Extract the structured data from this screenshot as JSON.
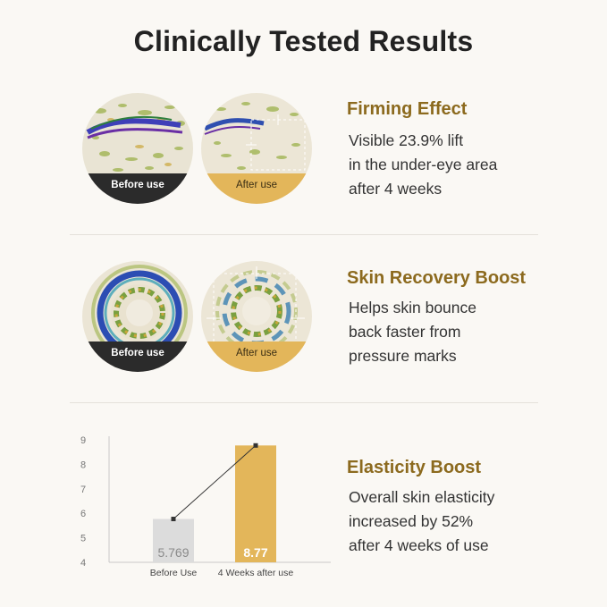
{
  "page": {
    "title": "Clinically Tested Results"
  },
  "sections": [
    {
      "heading": "Firming Effect",
      "lines": [
        "Visible 23.9% lift",
        "in the under-eye area",
        "after 4 weeks"
      ],
      "before_label": "Before use",
      "after_label": "After use"
    },
    {
      "heading": "Skin Recovery Boost",
      "lines": [
        "Helps skin bounce",
        "back faster from",
        "pressure marks"
      ],
      "before_label": "Before use",
      "after_label": "After use"
    },
    {
      "heading": "Elasticity Boost",
      "lines": [
        "Overall skin elasticity",
        "increased by 52%",
        "after 4 weeks of use"
      ]
    }
  ],
  "colors": {
    "accent": "#8c6a1e",
    "before_bar": "#dcdcdc",
    "after_bar": "#e3b65a",
    "caption_dark": "#2b2b2b"
  },
  "chart_data": {
    "type": "bar",
    "categories": [
      "Before Use",
      "4 Weeks after use"
    ],
    "values": [
      5.769,
      8.77
    ],
    "value_labels": [
      "5.769",
      "8.77"
    ],
    "yticks": [
      "4",
      "5",
      "6",
      "7",
      "8",
      "9"
    ],
    "ylim": [
      4,
      9
    ],
    "title": "",
    "xlabel": "",
    "ylabel": "",
    "grid": false,
    "trend_line": true
  }
}
